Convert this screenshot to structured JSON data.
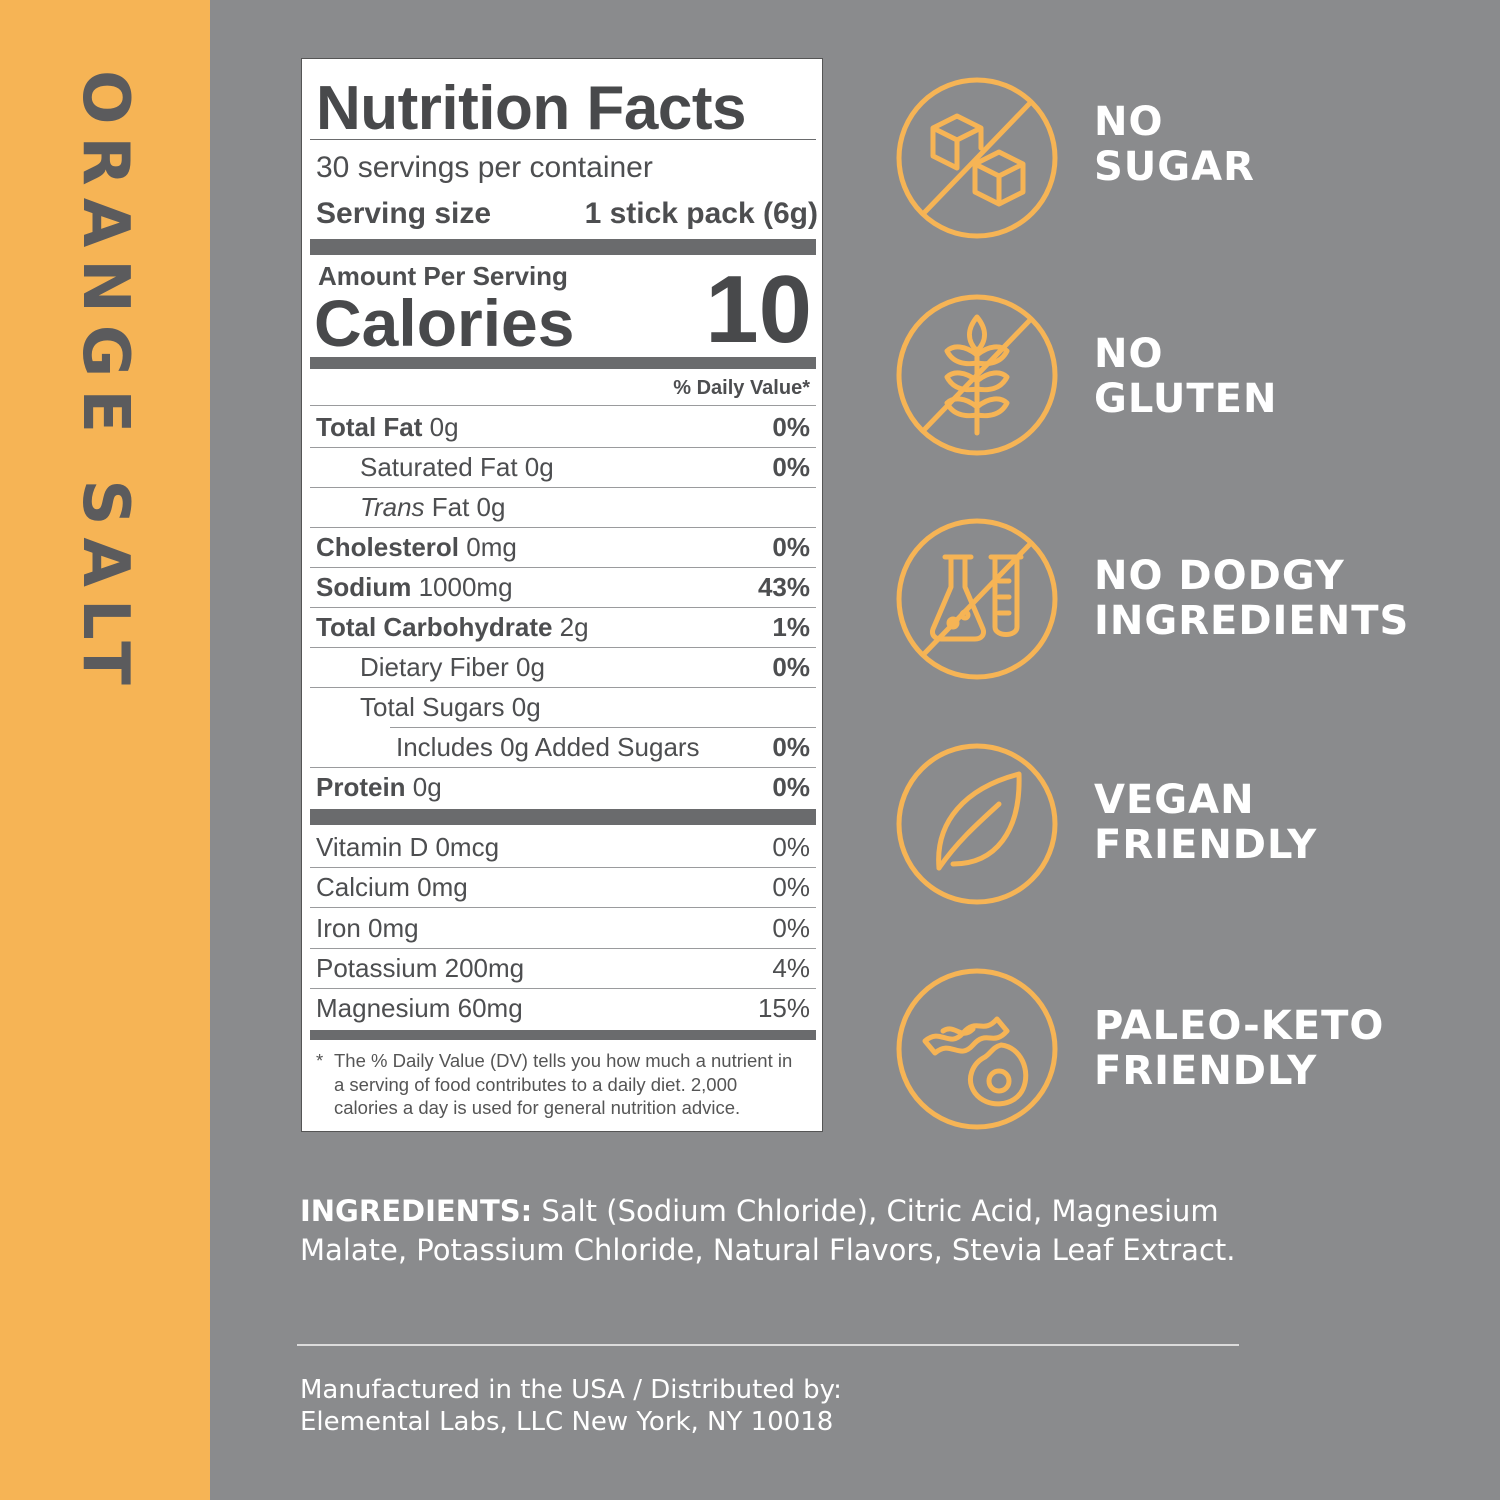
{
  "side_title": "ORANGE SALT",
  "nutrition": {
    "title": "Nutrition Facts",
    "servings": "30 servings per container",
    "serving_size_label": "Serving size",
    "serving_size_value": "1 stick pack (6g)",
    "amount_per_serving": "Amount Per Serving",
    "calories_label": "Calories",
    "calories_value": "10",
    "dv_header": "% Daily Value*",
    "rows": [
      {
        "name": "Total Fat",
        "amount": " 0g",
        "dv": "0%"
      },
      {
        "name": "Saturated Fat 0g",
        "amount": "",
        "dv": "0%"
      },
      {
        "name": "Trans",
        "amount": " Fat 0g",
        "dv": ""
      },
      {
        "name": "Cholesterol",
        "amount": " 0mg",
        "dv": "0%"
      },
      {
        "name": "Sodium",
        "amount": " 1000mg",
        "dv": "43%"
      },
      {
        "name": "Total Carbohydrate",
        "amount": " 2g",
        "dv": "1%"
      },
      {
        "name": "Dietary Fiber 0g",
        "amount": "",
        "dv": "0%"
      },
      {
        "name": "Total Sugars 0g",
        "amount": "",
        "dv": ""
      },
      {
        "name": "Includes 0g Added Sugars",
        "amount": "",
        "dv": "0%"
      },
      {
        "name": "Protein",
        "amount": " 0g",
        "dv": "0%"
      }
    ],
    "vitamins": [
      {
        "name": "Vitamin D 0mcg",
        "dv": "0%"
      },
      {
        "name": "Calcium 0mg",
        "dv": "0%"
      },
      {
        "name": "Iron 0mg",
        "dv": "0%"
      },
      {
        "name": "Potassium 200mg",
        "dv": "4%"
      },
      {
        "name": "Magnesium 60mg",
        "dv": "15%"
      }
    ],
    "footnote_star": "*",
    "footnote": "The % Daily Value (DV) tells you how much a nutrient in a serving of food contributes to a daily diet. 2,000 calories a day is used for general nutrition advice."
  },
  "claims": [
    {
      "line1": "NO",
      "line2": "SUGAR",
      "icon": "sugar-cubes-icon"
    },
    {
      "line1": "NO",
      "line2": "GLUTEN",
      "icon": "wheat-icon"
    },
    {
      "line1": "NO DODGY",
      "line2": "INGREDIENTS",
      "icon": "lab-flask-icon"
    },
    {
      "line1": "VEGAN",
      "line2": "FRIENDLY",
      "icon": "leaf-icon"
    },
    {
      "line1": "PALEO-KETO",
      "line2": "FRIENDLY",
      "icon": "bacon-avocado-icon"
    }
  ],
  "ingredients": {
    "label": "INGREDIENTS:",
    "text": " Salt (Sodium Chloride), Citric Acid, Magnesium Malate, Potassium Chloride, Natural Flavors, Stevia Leaf Extract."
  },
  "manufacturer": {
    "line1": "Manufactured in the USA / Distributed by:",
    "line2": "Elemental Labs, LLC New York, NY 10018"
  },
  "colors": {
    "accent": "#f6b455",
    "background": "#8a8b8d",
    "icon_stroke": "#f6b455"
  }
}
